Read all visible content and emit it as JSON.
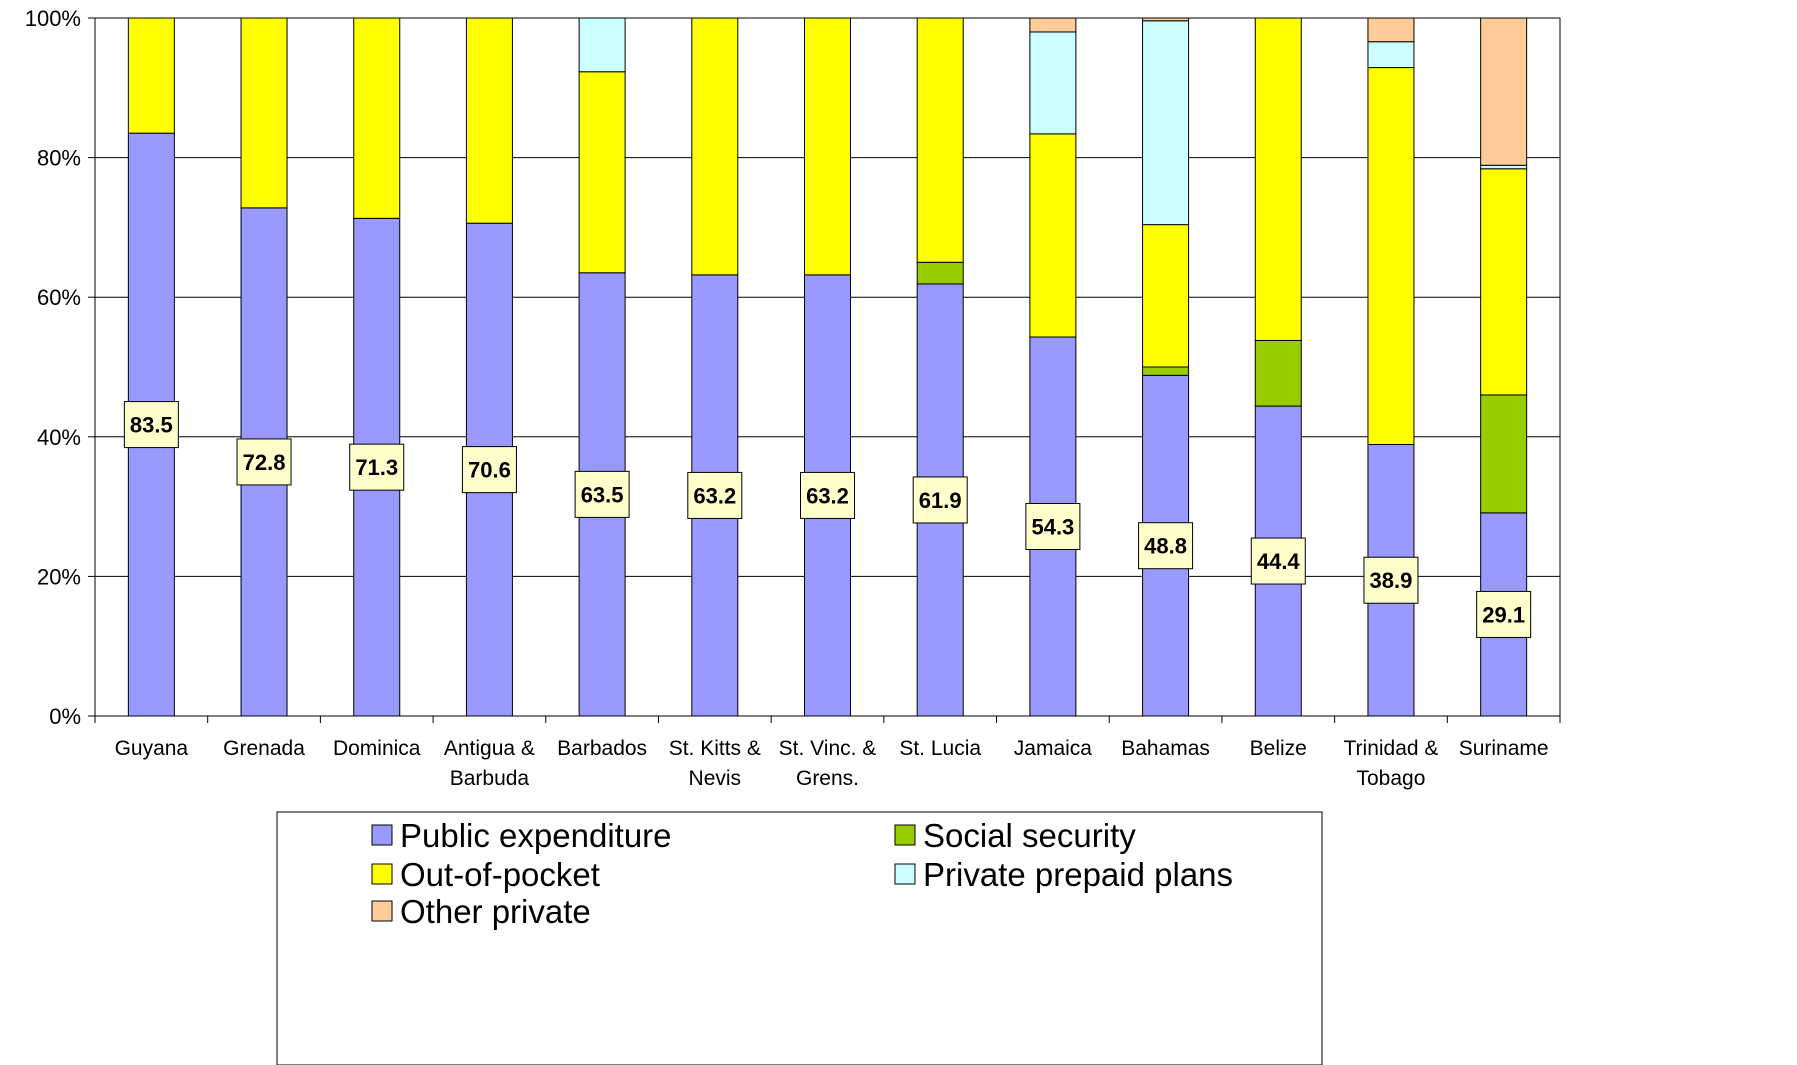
{
  "chart_data": {
    "type": "bar",
    "stacked": true,
    "categories": [
      "Guyana",
      "Grenada",
      "Dominica",
      "Antigua & Barbuda",
      "Barbados",
      "St. Kitts & Nevis",
      "St. Vinc. & Grens.",
      "St. Lucia",
      "Jamaica",
      "Bahamas",
      "Belize",
      "Trinidad & Tobago",
      "Suriname"
    ],
    "category_lines": [
      [
        "Guyana"
      ],
      [
        "Grenada"
      ],
      [
        "Dominica"
      ],
      [
        "Antigua &",
        "Barbuda"
      ],
      [
        "Barbados"
      ],
      [
        "St. Kitts &",
        "Nevis"
      ],
      [
        "St. Vinc. &",
        "Grens."
      ],
      [
        "St. Lucia"
      ],
      [
        "Jamaica"
      ],
      [
        "Bahamas"
      ],
      [
        "Belize"
      ],
      [
        "Trinidad &",
        "Tobago"
      ],
      [
        "Suriname"
      ]
    ],
    "series": [
      {
        "name": "Public expenditure",
        "color": "#9999ff",
        "values": [
          83.5,
          72.8,
          71.3,
          70.6,
          63.5,
          63.2,
          63.2,
          61.9,
          54.3,
          48.8,
          44.4,
          38.9,
          29.1
        ]
      },
      {
        "name": "Social security",
        "color": "#99cc00",
        "values": [
          0,
          0,
          0,
          0,
          0,
          0,
          0,
          3.1,
          0,
          1.2,
          9.4,
          0,
          16.9
        ]
      },
      {
        "name": "Out-of-pocket",
        "color": "#ffff00",
        "values": [
          16.5,
          27.2,
          28.7,
          29.4,
          28.8,
          36.8,
          36.8,
          35.0,
          29.1,
          20.4,
          46.2,
          54.0,
          32.4
        ]
      },
      {
        "name": "Private prepaid plans",
        "color": "#ccffff",
        "values": [
          0,
          0,
          0,
          0,
          7.7,
          0,
          0,
          0,
          14.6,
          29.2,
          0,
          3.7,
          0.5
        ]
      },
      {
        "name": "Other private",
        "color": "#ffcc99",
        "values": [
          0,
          0,
          0,
          0,
          0,
          0,
          0,
          0,
          2.0,
          0.4,
          0,
          3.4,
          21.1
        ]
      }
    ],
    "data_labels": [
      "83.5",
      "72.8",
      "71.3",
      "70.6",
      "63.5",
      "63.2",
      "63.2",
      "61.9",
      "54.3",
      "48.8",
      "44.4",
      "38.9",
      "29.1"
    ],
    "y_ticks": [
      "0%",
      "20%",
      "40%",
      "60%",
      "80%",
      "100%"
    ],
    "ylim": [
      0,
      100
    ],
    "grid": true,
    "legend_position": "bottom",
    "legend_rows": [
      [
        "Public expenditure",
        "Social security"
      ],
      [
        "Out-of-pocket",
        "Private prepaid plans"
      ],
      [
        "Other private"
      ]
    ]
  }
}
